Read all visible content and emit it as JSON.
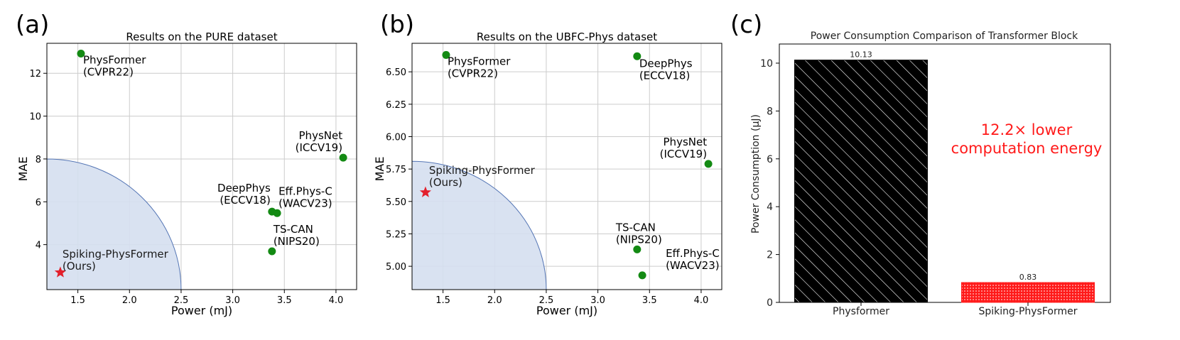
{
  "panels": [
    {
      "letter": "(a)"
    },
    {
      "letter": "(b)"
    },
    {
      "letter": "(c)"
    }
  ],
  "colors": {
    "marker": "#138a13",
    "ours": "#e3202c",
    "region_fill": "#d5dff0",
    "region_edge": "#5576b5",
    "grid": "#cccccc",
    "bar_physformer": "#000000",
    "bar_spiking": "#ff1a1a",
    "highlight_text": "#ff1a1a"
  },
  "chart_data": [
    {
      "type": "scatter",
      "title": "Results on the PURE dataset",
      "xlabel": "Power (mJ)",
      "ylabel": "MAE",
      "xlim": [
        1.2,
        4.2
      ],
      "ylim": [
        1.9,
        13.4
      ],
      "xticks": [
        "1.5",
        "2.0",
        "2.5",
        "3.0",
        "3.5",
        "4.0"
      ],
      "yticks": [
        "4",
        "6",
        "8",
        "10",
        "12"
      ],
      "grid": true,
      "points": [
        {
          "name": "PhysFormer",
          "venue": "(CVPR22)",
          "x": 1.53,
          "y": 12.92
        },
        {
          "name": "PhysNet",
          "venue": "(ICCV19)",
          "x": 4.07,
          "y": 8.06
        },
        {
          "name": "DeepPhys",
          "venue": "(ECCV18)",
          "x": 3.38,
          "y": 5.54
        },
        {
          "name": "Eff.Phys-C",
          "venue": "(WACV23)",
          "x": 3.43,
          "y": 5.47
        },
        {
          "name": "TS-CAN",
          "venue": "(NIPS20)",
          "x": 3.38,
          "y": 3.69
        },
        {
          "name": "Spiking-PhysFormer",
          "venue": "(Ours)",
          "x": 1.33,
          "y": 2.7,
          "ours": true
        }
      ],
      "region": {
        "x_radius_end": 2.5,
        "y_top": 8.0
      }
    },
    {
      "type": "scatter",
      "title": "Results on the UBFC-Phys dataset",
      "xlabel": "Power (mJ)",
      "ylabel": "MAE",
      "xlim": [
        1.2,
        4.2
      ],
      "ylim": [
        4.82,
        6.72
      ],
      "xticks": [
        "1.5",
        "2.0",
        "2.5",
        "3.0",
        "3.5",
        "4.0"
      ],
      "yticks": [
        "5.00",
        "5.25",
        "5.50",
        "5.75",
        "6.00",
        "6.25",
        "6.50"
      ],
      "grid": true,
      "points": [
        {
          "name": "PhysFormer",
          "venue": "(CVPR22)",
          "x": 1.53,
          "y": 6.63
        },
        {
          "name": "DeepPhys",
          "venue": "(ECCV18)",
          "x": 3.38,
          "y": 6.62
        },
        {
          "name": "PhysNet",
          "venue": "(ICCV19)",
          "x": 4.07,
          "y": 5.79
        },
        {
          "name": "TS-CAN",
          "venue": "(NIPS20)",
          "x": 3.38,
          "y": 5.13
        },
        {
          "name": "Eff.Phys-C",
          "venue": "(WACV23)",
          "x": 3.43,
          "y": 4.93
        },
        {
          "name": "Spiking-PhysFormer",
          "venue": "(Ours)",
          "x": 1.33,
          "y": 5.57,
          "ours": true
        }
      ],
      "region": {
        "x_radius_end": 2.5,
        "y_top": 5.81
      }
    },
    {
      "type": "bar",
      "title": "Power Consumption Comparison of Transformer Block",
      "xlabel": "",
      "ylabel": "Power Consumption (µJ)",
      "ylim": [
        0,
        10.8
      ],
      "yticks": [
        "0",
        "2",
        "4",
        "6",
        "8",
        "10"
      ],
      "categories": [
        "Physformer",
        "Spiking-PhysFormer"
      ],
      "values": [
        10.13,
        0.83
      ],
      "value_labels": [
        "10.13",
        "0.83"
      ],
      "annotation": [
        "12.2× lower",
        "computation energy"
      ]
    }
  ]
}
